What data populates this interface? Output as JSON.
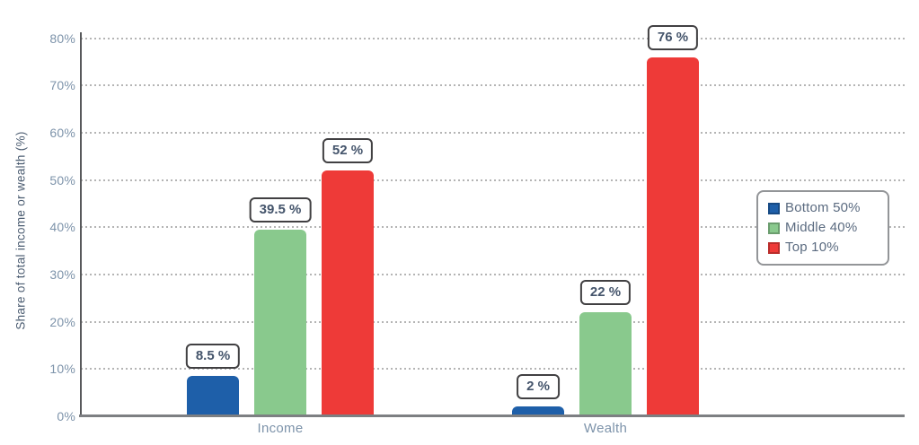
{
  "chart_data": {
    "type": "bar",
    "title": "",
    "categories": [
      "Income",
      "Wealth"
    ],
    "series": [
      {
        "name": "Bottom 50%",
        "color": "#1e5fa9",
        "values": [
          8.5,
          2
        ],
        "value_labels": [
          "8.5 %",
          "2 %"
        ]
      },
      {
        "name": "Middle 40%",
        "color": "#89c98d",
        "values": [
          39.5,
          22
        ],
        "value_labels": [
          "39.5 %",
          "22 %"
        ]
      },
      {
        "name": "Top 10%",
        "color": "#ee3a38",
        "values": [
          52,
          76
        ],
        "value_labels": [
          "52 %",
          "76 %"
        ]
      }
    ],
    "xlabel": "",
    "ylabel": "Share of total income or wealth (%)",
    "ylim": [
      0,
      80
    ],
    "ytick_step": 10,
    "ytick_labels": [
      "0%",
      "10%",
      "20%",
      "30%",
      "40%",
      "50%",
      "60%",
      "70%",
      "80%"
    ],
    "grid": "horizontal-dotted",
    "legend_position": "middle-right"
  },
  "colors": {
    "background": "#ffffff",
    "bottom50": "#1e5fa9",
    "middle40": "#89c98d",
    "top10": "#ee3a38",
    "value_label_text": "#44546b",
    "value_label_border": "#414042",
    "tick_text": "#7d93aa",
    "axis_title_text": "#4b5c71",
    "legend_text": "#5b6b80",
    "legend_border": "#939598",
    "y_axis_line": "#58595b",
    "x_axis_line": "#7d7f82",
    "gridline": "#b4b4b4"
  }
}
